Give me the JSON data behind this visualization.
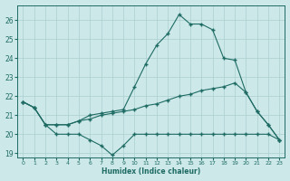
{
  "xlabel": "Humidex (Indice chaleur)",
  "background_color": "#cce8e8",
  "grid_color": "#aacfcf",
  "line_color": "#1e6b64",
  "xlim": [
    -0.5,
    23.5
  ],
  "ylim": [
    18.8,
    26.8
  ],
  "yticks": [
    19,
    20,
    21,
    22,
    23,
    24,
    25,
    26
  ],
  "xticks": [
    0,
    1,
    2,
    3,
    4,
    5,
    6,
    7,
    8,
    9,
    10,
    11,
    12,
    13,
    14,
    15,
    16,
    17,
    18,
    19,
    20,
    21,
    22,
    23
  ],
  "line1_x": [
    0,
    1,
    2,
    3,
    4,
    5,
    6,
    7,
    8,
    9,
    10,
    11,
    12,
    13,
    14,
    15,
    16,
    17,
    18,
    19,
    20,
    21,
    22,
    23
  ],
  "line1_y": [
    21.7,
    21.4,
    20.5,
    20.0,
    20.0,
    20.0,
    19.7,
    19.4,
    18.9,
    19.4,
    20.0,
    20.0,
    20.0,
    20.0,
    20.0,
    20.0,
    20.0,
    20.0,
    20.0,
    20.0,
    20.0,
    20.0,
    20.0,
    19.7
  ],
  "line2_x": [
    0,
    1,
    2,
    3,
    4,
    5,
    6,
    7,
    8,
    9,
    10,
    11,
    12,
    13,
    14,
    15,
    16,
    17,
    18,
    19,
    20,
    21,
    22,
    23
  ],
  "line2_y": [
    21.7,
    21.4,
    20.5,
    20.5,
    20.5,
    20.7,
    20.8,
    21.0,
    21.1,
    21.2,
    21.3,
    21.5,
    21.6,
    21.8,
    22.0,
    22.1,
    22.3,
    22.4,
    22.5,
    22.7,
    22.2,
    21.2,
    20.5,
    19.7
  ],
  "line3_x": [
    0,
    1,
    2,
    3,
    4,
    5,
    6,
    7,
    8,
    9,
    10,
    11,
    12,
    13,
    14,
    15,
    16,
    17,
    18,
    19,
    20,
    21,
    22,
    23
  ],
  "line3_y": [
    21.7,
    21.4,
    20.5,
    20.5,
    20.5,
    20.7,
    21.0,
    21.1,
    21.2,
    21.3,
    22.5,
    23.7,
    24.7,
    25.3,
    26.3,
    25.8,
    25.8,
    25.5,
    24.0,
    23.9,
    22.2,
    21.2,
    20.5,
    19.7
  ]
}
